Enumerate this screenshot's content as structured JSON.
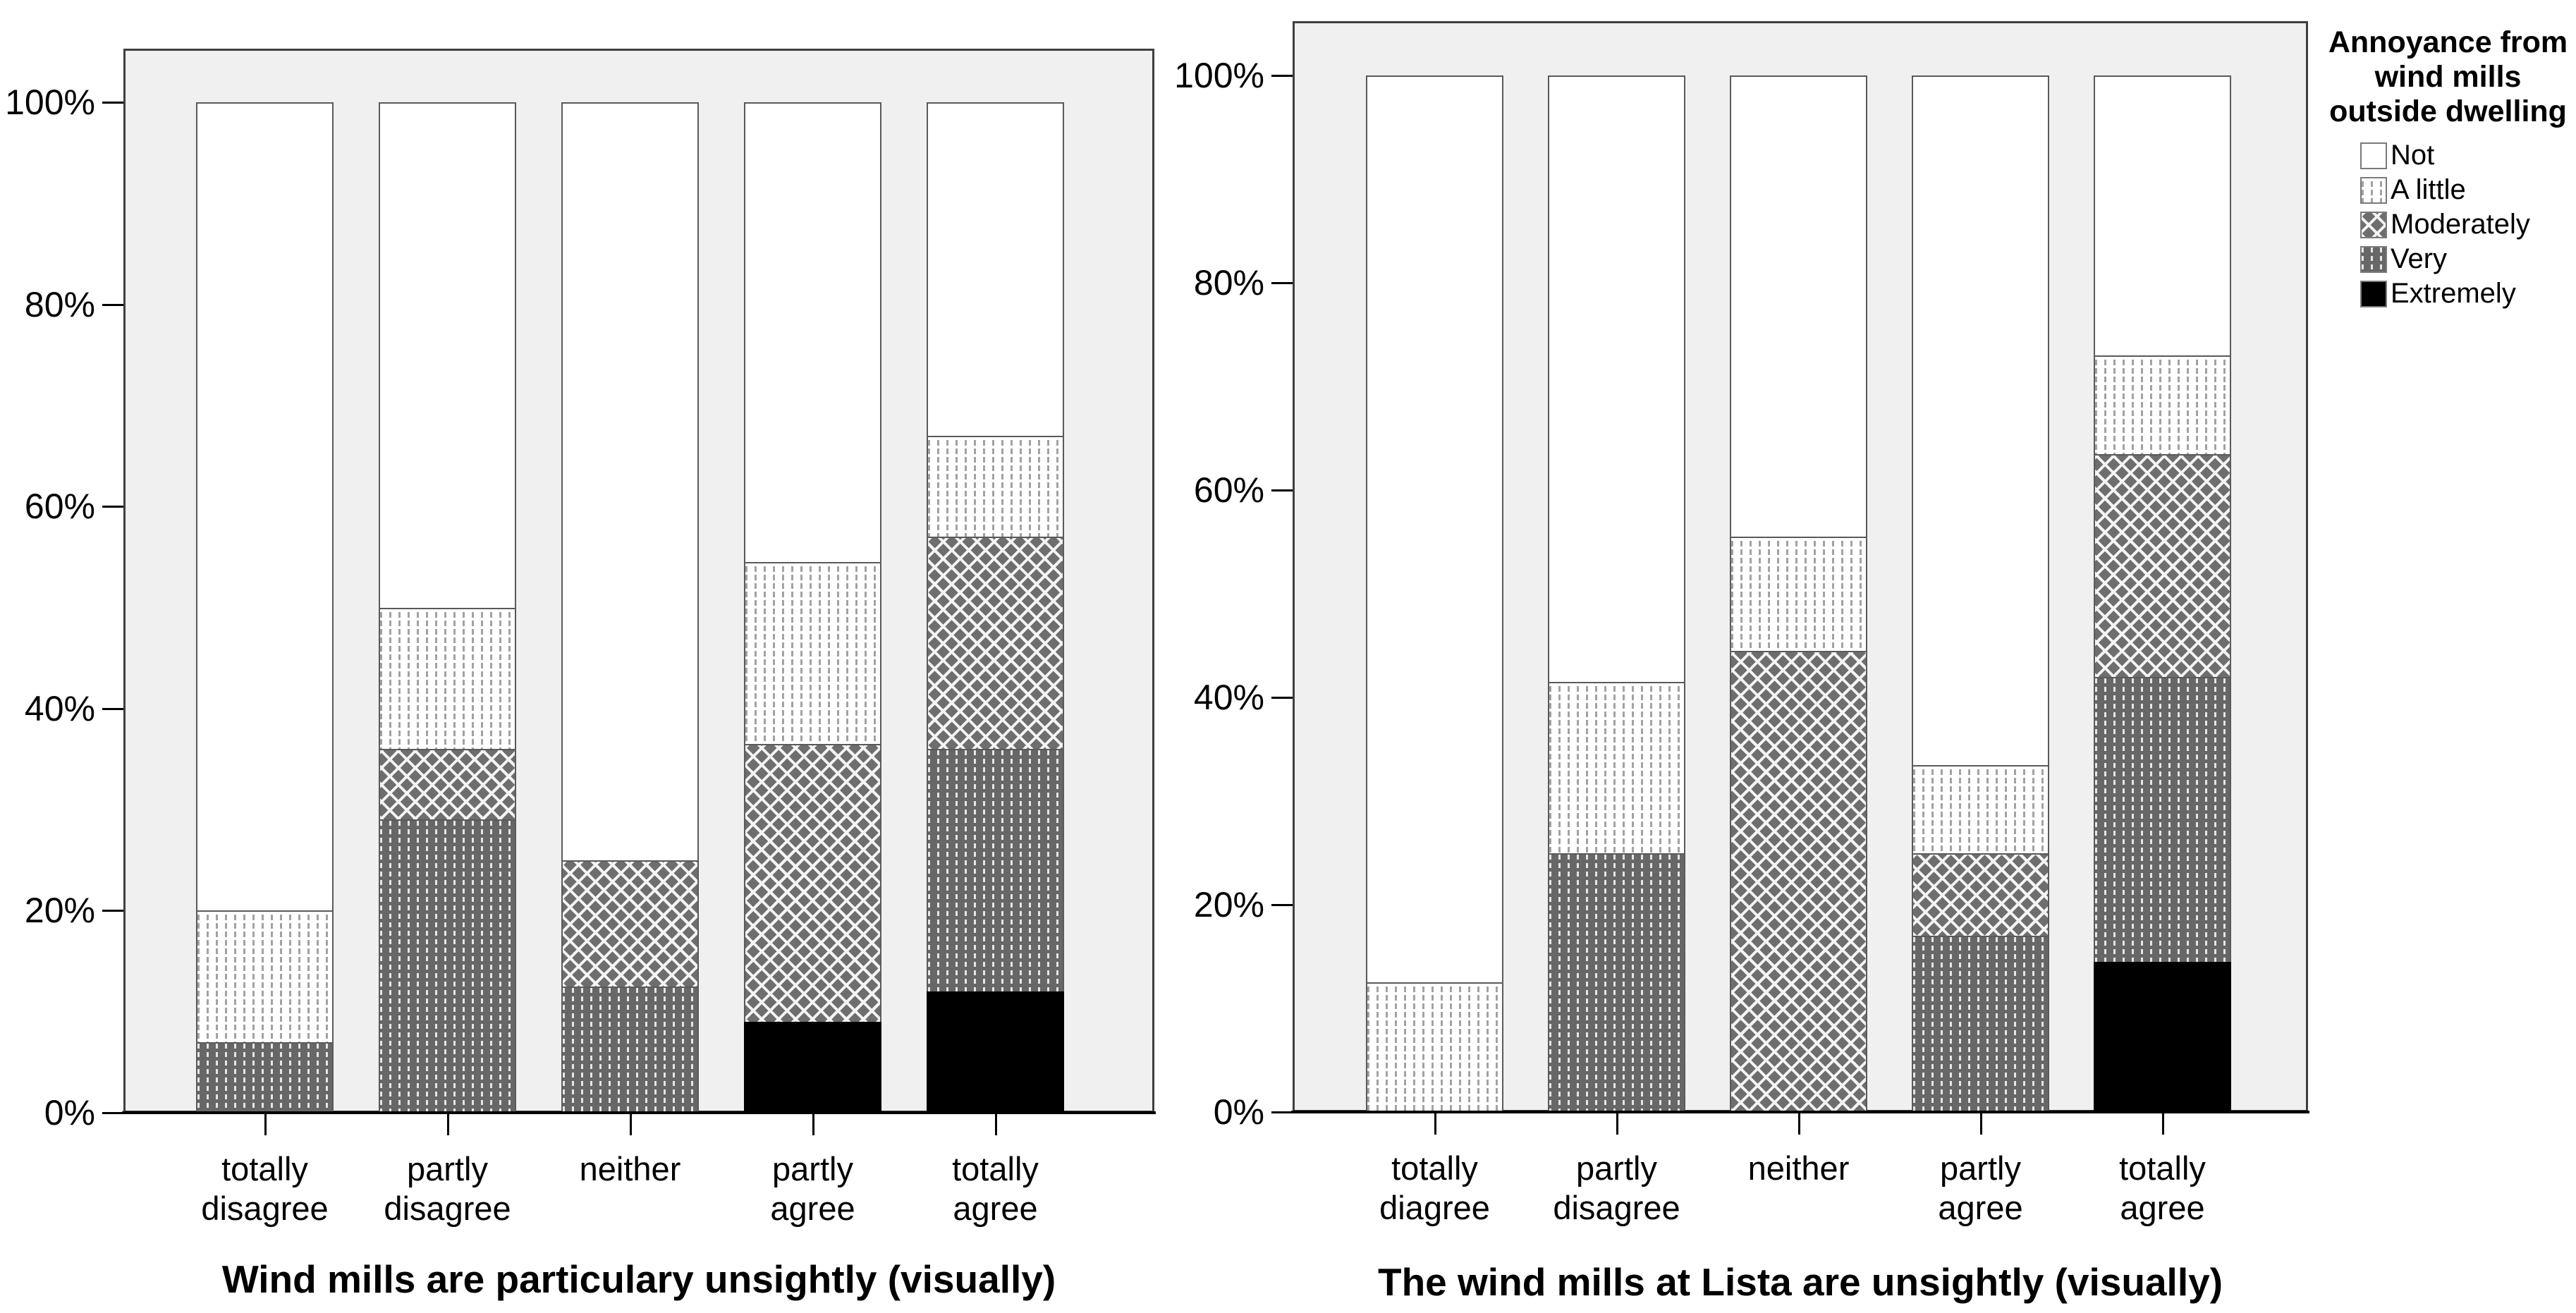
{
  "y_axis": {
    "tick_labels": [
      "100%",
      "80%",
      "60%",
      "40%",
      "20%",
      "0%"
    ]
  },
  "legend": {
    "title_lines": [
      "Annoyance from",
      "wind mills",
      "outside dwelling"
    ],
    "items": [
      {
        "label": "Not",
        "key": "not"
      },
      {
        "label": "A little",
        "key": "a-little"
      },
      {
        "label": "Moderately",
        "key": "moderately"
      },
      {
        "label": "Very",
        "key": "very"
      },
      {
        "label": "Extremely",
        "key": "extremely"
      }
    ]
  },
  "colors": {
    "plot_background": "#f0f0f0",
    "segment_border": "#5a5a5a",
    "pattern_gray": "#6e6e6e",
    "extremely_black": "#000000",
    "not_white": "#ffffff"
  },
  "chart_data": [
    {
      "type": "bar",
      "subtype": "stacked_percent",
      "title": "Wind mills are particulary unsightly (visually)",
      "categories": [
        "totally\ndisagree",
        "partly\ndisagree",
        "neither",
        "partly\nagree",
        "totally\nagree"
      ],
      "series": [
        {
          "name": "Extremely",
          "key": "extremely",
          "values": [
            0,
            0,
            0,
            9,
            12
          ]
        },
        {
          "name": "Very",
          "key": "very",
          "values": [
            7,
            29,
            12.5,
            0,
            24
          ]
        },
        {
          "name": "Moderately",
          "key": "moderately",
          "values": [
            0,
            7,
            12.5,
            27.5,
            21
          ]
        },
        {
          "name": "A little",
          "key": "a-little",
          "values": [
            13,
            14,
            0,
            18,
            10
          ]
        },
        {
          "name": "Not",
          "key": "not",
          "values": [
            80,
            50,
            75,
            45.5,
            33
          ]
        }
      ],
      "ylim": [
        0,
        100
      ],
      "yticks": [
        "0%",
        "20%",
        "40%",
        "60%",
        "80%",
        "100%"
      ],
      "grid": false,
      "legend_position": "right-of-second-chart"
    },
    {
      "type": "bar",
      "subtype": "stacked_percent",
      "title": "The wind mills at Lista are unsightly (visually)",
      "categories": [
        "totally\ndiagree",
        "partly\ndisagree",
        "neither",
        "partly\nagree",
        "totally\nagree"
      ],
      "series": [
        {
          "name": "Extremely",
          "key": "extremely",
          "values": [
            0,
            0,
            0,
            0,
            14.5
          ]
        },
        {
          "name": "Very",
          "key": "very",
          "values": [
            0,
            25,
            0,
            17,
            27.5
          ]
        },
        {
          "name": "Moderately",
          "key": "moderately",
          "values": [
            0,
            0,
            44.5,
            8,
            21.5
          ]
        },
        {
          "name": "A little",
          "key": "a-little",
          "values": [
            12.5,
            16.5,
            11,
            8.5,
            9.5
          ]
        },
        {
          "name": "Not",
          "key": "not",
          "values": [
            87.5,
            58.5,
            44.5,
            66.5,
            27
          ]
        }
      ],
      "ylim": [
        0,
        100
      ],
      "yticks": [
        "0%",
        "20%",
        "40%",
        "60%",
        "80%",
        "100%"
      ],
      "grid": false,
      "legend_position": "right"
    }
  ]
}
